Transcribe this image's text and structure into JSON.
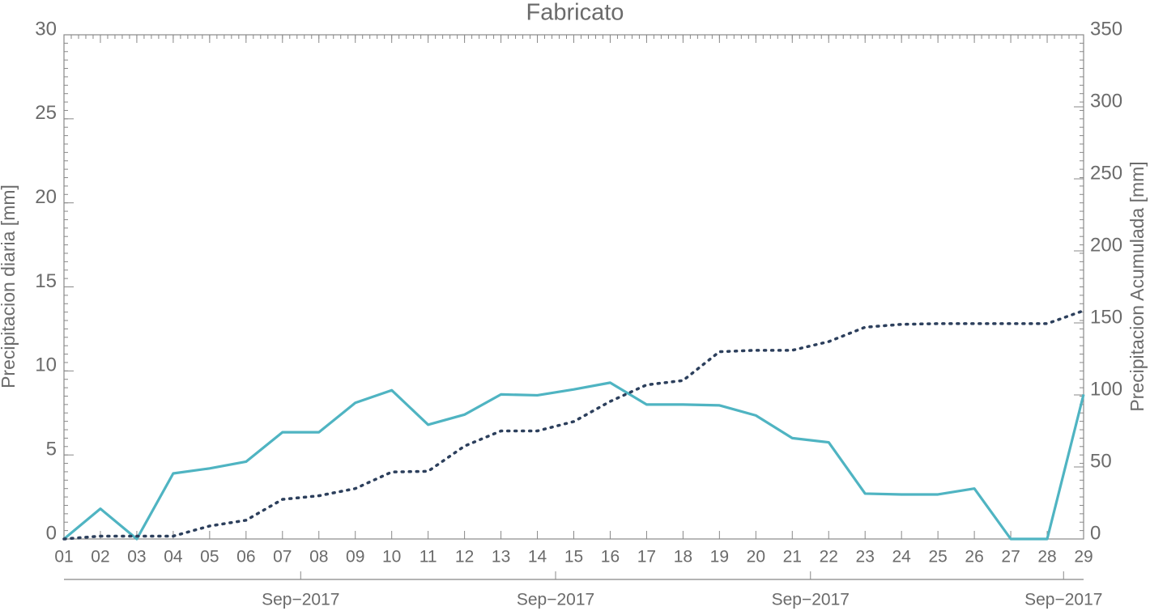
{
  "chart_data": {
    "type": "line",
    "title": "Fabricato",
    "y_label": "Precipitacion diaria [mm]",
    "y2_label": "Precipitacion Acumulada [mm]",
    "categories": [
      "01",
      "02",
      "03",
      "04",
      "05",
      "06",
      "07",
      "08",
      "09",
      "10",
      "11",
      "12",
      "13",
      "14",
      "15",
      "16",
      "17",
      "18",
      "19",
      "20",
      "21",
      "22",
      "23",
      "24",
      "25",
      "26",
      "27",
      "28",
      "29"
    ],
    "date_labels": [
      "Sep−2017",
      "Sep−2017",
      "Sep−2017",
      "Sep−2017"
    ],
    "series": [
      {
        "color": "#4fb4c2",
        "values": [
          0,
          1.8,
          0,
          3.9,
          4.2,
          4.6,
          6.35,
          6.35,
          8.1,
          8.85,
          6.8,
          7.4,
          8.6,
          8.55,
          8.9,
          9.3,
          8.0,
          8.0,
          7.95,
          7.35,
          6.0,
          5.75,
          2.7,
          2.65,
          2.65,
          3.0,
          0,
          0,
          8.6
        ]
      },
      {
        "color": "#2c3f5c",
        "axis": "y2",
        "dash": "dotted",
        "values": [
          0,
          2,
          2,
          2,
          9,
          13,
          27.5,
          30,
          35,
          46.5,
          47,
          64.5,
          75,
          75,
          81.5,
          95.5,
          107,
          110,
          130,
          131,
          131,
          137,
          147,
          149,
          149.5,
          149.5,
          149.5,
          149.5,
          158.5
        ]
      }
    ],
    "ylim": [
      0,
      30
    ],
    "yticks": [
      0,
      5,
      10,
      15,
      20,
      25,
      30
    ],
    "y2lim": [
      0,
      350
    ],
    "y2ticks": [
      0,
      50,
      100,
      150,
      200,
      250,
      300,
      350
    ]
  }
}
